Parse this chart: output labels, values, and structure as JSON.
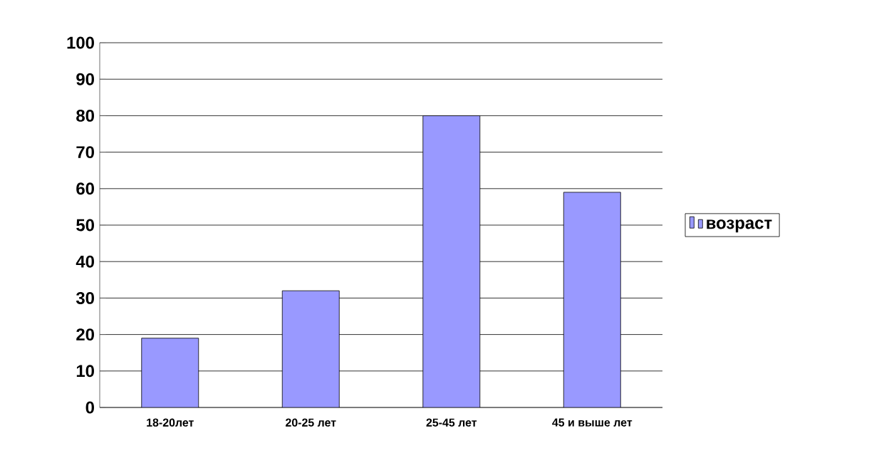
{
  "chart_data": {
    "type": "bar",
    "categories": [
      "18-20лет",
      "20-25 лет",
      "25-45 лет",
      "45 и выше лет"
    ],
    "series": [
      {
        "name": "возраст",
        "color": "#9999ff",
        "values": [
          19,
          32,
          80,
          59
        ]
      }
    ],
    "ylim": [
      0,
      100
    ],
    "yticks": [
      0,
      10,
      20,
      30,
      40,
      50,
      60,
      70,
      80,
      90,
      100
    ],
    "grid": "y",
    "legend": "right"
  }
}
